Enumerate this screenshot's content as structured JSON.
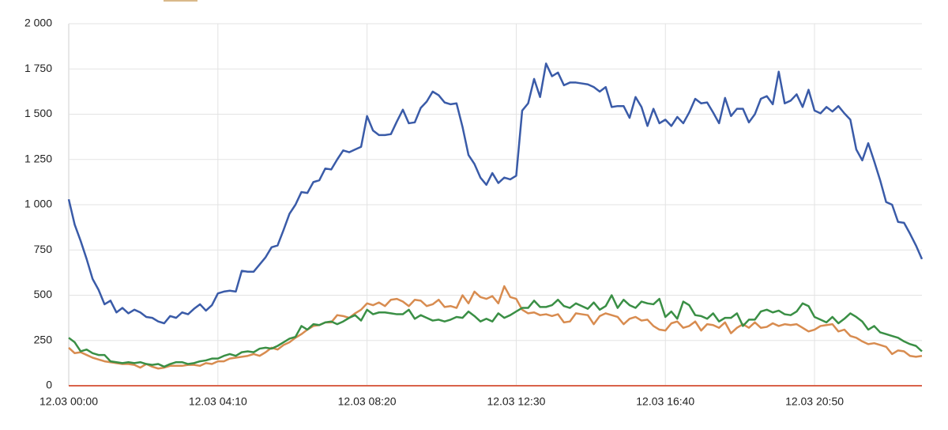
{
  "chart_data": {
    "type": "line",
    "categories": [
      "12.03 00:00",
      null,
      null,
      null,
      null,
      null,
      null,
      null,
      null,
      null,
      null,
      null,
      null,
      null,
      null,
      null,
      null,
      null,
      null,
      null,
      null,
      null,
      null,
      null,
      null,
      "12.03 04:10",
      null,
      null,
      null,
      null,
      null,
      null,
      null,
      null,
      null,
      null,
      null,
      null,
      null,
      null,
      null,
      null,
      null,
      null,
      null,
      null,
      null,
      null,
      null,
      null,
      "12.03 08:20",
      null,
      null,
      null,
      null,
      null,
      null,
      null,
      null,
      null,
      null,
      null,
      null,
      null,
      null,
      null,
      null,
      null,
      null,
      null,
      null,
      null,
      null,
      null,
      null,
      "12.03 12:30",
      null,
      null,
      null,
      null,
      null,
      null,
      null,
      null,
      null,
      null,
      null,
      null,
      null,
      null,
      null,
      null,
      null,
      null,
      null,
      null,
      null,
      null,
      null,
      null,
      "12.03 16:40",
      null,
      null,
      null,
      null,
      null,
      null,
      null,
      null,
      null,
      null,
      null,
      null,
      null,
      null,
      null,
      null,
      null,
      null,
      null,
      null,
      null,
      null,
      null,
      null,
      "12.03 20:50",
      null,
      null,
      null,
      null,
      null,
      null,
      null,
      null,
      null,
      null,
      null,
      null,
      null,
      null,
      null,
      null,
      null,
      null
    ],
    "series": [
      {
        "color": "#3a5ba8",
        "values": [
          1030,
          890,
          800,
          700,
          590,
          530,
          450,
          470,
          405,
          430,
          400,
          420,
          405,
          380,
          375,
          355,
          345,
          385,
          375,
          405,
          395,
          425,
          450,
          415,
          445,
          510,
          520,
          525,
          520,
          635,
          630,
          630,
          670,
          710,
          765,
          775,
          860,
          950,
          1000,
          1070,
          1065,
          1125,
          1135,
          1200,
          1195,
          1250,
          1300,
          1290,
          1305,
          1320,
          1490,
          1410,
          1385,
          1385,
          1390,
          1460,
          1525,
          1450,
          1455,
          1535,
          1570,
          1625,
          1605,
          1565,
          1555,
          1560,
          1430,
          1275,
          1225,
          1150,
          1110,
          1175,
          1120,
          1150,
          1140,
          1160,
          1520,
          1560,
          1695,
          1595,
          1780,
          1710,
          1730,
          1660,
          1675,
          1675,
          1670,
          1665,
          1650,
          1625,
          1650,
          1540,
          1545,
          1545,
          1480,
          1595,
          1540,
          1435,
          1530,
          1450,
          1470,
          1435,
          1485,
          1450,
          1510,
          1585,
          1560,
          1565,
          1510,
          1450,
          1590,
          1490,
          1530,
          1530,
          1455,
          1500,
          1585,
          1600,
          1555,
          1735,
          1560,
          1575,
          1610,
          1540,
          1635,
          1520,
          1505,
          1540,
          1515,
          1545,
          1505,
          1470,
          1305,
          1245,
          1340,
          1240,
          1135,
          1015,
          1000,
          905,
          900,
          840,
          775,
          700
        ]
      },
      {
        "color": "#d88c50",
        "values": [
          210,
          180,
          185,
          170,
          155,
          145,
          135,
          130,
          125,
          120,
          120,
          115,
          100,
          120,
          105,
          95,
          100,
          110,
          110,
          110,
          115,
          115,
          110,
          125,
          120,
          135,
          135,
          150,
          155,
          160,
          165,
          175,
          165,
          185,
          210,
          200,
          225,
          240,
          265,
          285,
          310,
          330,
          335,
          350,
          350,
          390,
          385,
          375,
          400,
          420,
          455,
          445,
          460,
          440,
          475,
          480,
          465,
          440,
          475,
          470,
          440,
          450,
          475,
          435,
          440,
          430,
          500,
          455,
          520,
          490,
          480,
          495,
          455,
          550,
          490,
          480,
          420,
          400,
          405,
          390,
          395,
          385,
          395,
          350,
          355,
          400,
          395,
          390,
          340,
          385,
          400,
          390,
          380,
          340,
          370,
          380,
          360,
          365,
          330,
          310,
          305,
          345,
          355,
          320,
          330,
          355,
          305,
          340,
          335,
          320,
          350,
          290,
          320,
          340,
          320,
          350,
          320,
          325,
          345,
          330,
          340,
          335,
          340,
          320,
          300,
          310,
          330,
          335,
          340,
          300,
          310,
          275,
          265,
          245,
          230,
          235,
          225,
          215,
          175,
          195,
          190,
          165,
          160,
          165
        ]
      },
      {
        "color": "#3a8f45",
        "values": [
          265,
          240,
          190,
          200,
          180,
          170,
          170,
          135,
          130,
          125,
          130,
          125,
          130,
          120,
          115,
          120,
          105,
          120,
          130,
          130,
          120,
          125,
          135,
          140,
          150,
          150,
          165,
          175,
          165,
          185,
          190,
          185,
          205,
          210,
          205,
          220,
          240,
          260,
          270,
          330,
          310,
          340,
          335,
          350,
          355,
          340,
          355,
          375,
          390,
          360,
          420,
          395,
          405,
          405,
          400,
          395,
          395,
          420,
          370,
          390,
          375,
          360,
          365,
          355,
          365,
          380,
          375,
          410,
          385,
          355,
          370,
          355,
          400,
          375,
          390,
          410,
          430,
          430,
          470,
          435,
          435,
          445,
          475,
          440,
          430,
          455,
          440,
          425,
          460,
          420,
          440,
          500,
          430,
          475,
          445,
          430,
          465,
          455,
          450,
          480,
          380,
          410,
          370,
          465,
          445,
          390,
          385,
          370,
          400,
          355,
          375,
          375,
          400,
          330,
          365,
          365,
          410,
          420,
          405,
          415,
          395,
          390,
          410,
          455,
          440,
          380,
          365,
          350,
          380,
          345,
          370,
          400,
          380,
          355,
          310,
          330,
          295,
          285,
          275,
          265,
          245,
          230,
          220,
          190
        ]
      }
    ],
    "ylim": [
      0,
      2000
    ],
    "yticks": [
      0,
      250,
      500,
      750,
      {
        "value": 1000,
        "label": "1 000"
      },
      {
        "value": 1250,
        "label": "1 250"
      },
      {
        "value": 1500,
        "label": "1 500"
      },
      {
        "value": 1750,
        "label": "1 750"
      },
      {
        "value": 2000,
        "label": "2 000"
      }
    ],
    "grid": true
  }
}
